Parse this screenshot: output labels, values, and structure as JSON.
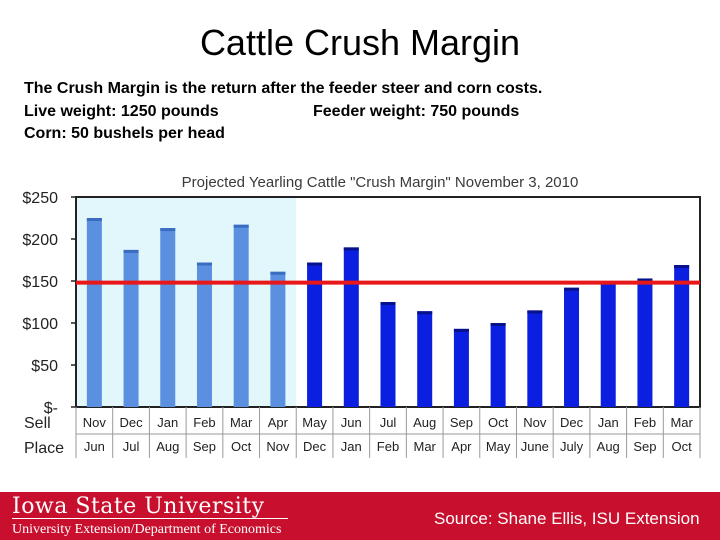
{
  "slide": {
    "title": "Cattle Crush Margin",
    "description": [
      "The Crush Margin is the return after the feeder steer and corn costs.",
      "Live weight:  1250 pounds",
      "Feeder weight:  750 pounds",
      "Corn:  50 bushels per head"
    ]
  },
  "chart_data": {
    "type": "bar",
    "title": "Projected Yearling Cattle \"Crush Margin\" November 3, 2010",
    "ylabel": "",
    "xlabel": "",
    "ylim": [
      0,
      250
    ],
    "y_ticks": [
      {
        "value": 250,
        "label": "$250"
      },
      {
        "value": 200,
        "label": "$200"
      },
      {
        "value": 150,
        "label": "$150"
      },
      {
        "value": 100,
        "label": "$100"
      },
      {
        "value": 50,
        "label": "$50"
      },
      {
        "value": 0,
        "label": "$-"
      }
    ],
    "row_labels": [
      "Sell",
      "Place"
    ],
    "categories": [
      "Nov",
      "Dec",
      "Jan",
      "Feb",
      "Mar",
      "Apr",
      "May",
      "Jun",
      "Jul",
      "Aug",
      "Sep",
      "Oct",
      "Nov",
      "Dec",
      "Jan",
      "Feb",
      "Mar"
    ],
    "place_months": [
      "Jun",
      "Jul",
      "Aug",
      "Sep",
      "Oct",
      "Nov",
      "Dec",
      "Jan",
      "Feb",
      "Mar",
      "Apr",
      "May",
      "June",
      "July",
      "Aug",
      "Sep",
      "Oct"
    ],
    "values": [
      225,
      187,
      213,
      172,
      217,
      161,
      172,
      190,
      125,
      114,
      93,
      100,
      115,
      142,
      150,
      153,
      169
    ],
    "historical_count": 6,
    "reference_line": 148,
    "colors": {
      "historical_bar": "#5b8fe0",
      "projected_bar": "#0a1fe0",
      "historical_bg": "#e2f7fb",
      "reference_line": "#e8171a"
    }
  },
  "footer": {
    "university": "Iowa State University",
    "department": "University Extension/Department of Economics",
    "source": "Source: Shane Ellis, ISU Extension",
    "background": "#c8102e"
  }
}
